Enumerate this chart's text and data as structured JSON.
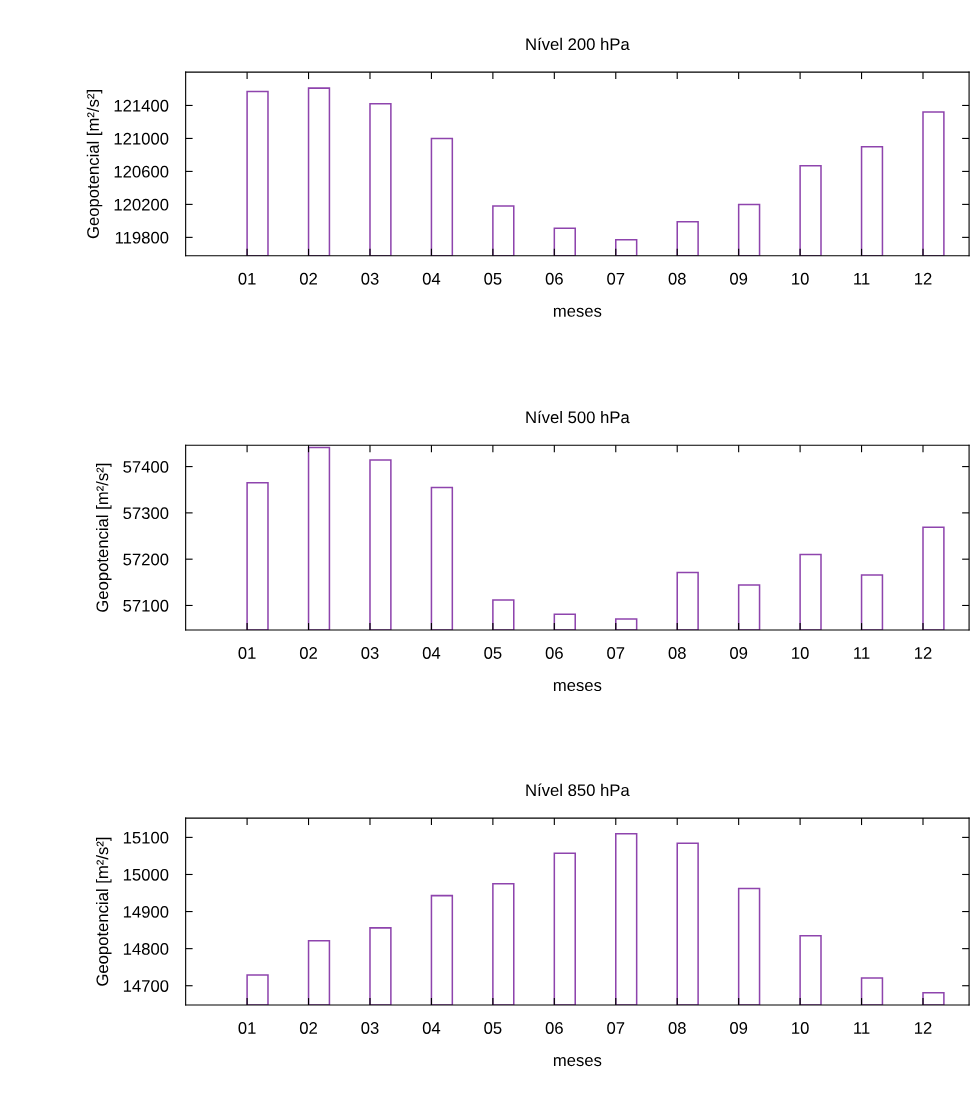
{
  "chart_data": [
    {
      "type": "bar",
      "title": "Nível 200 hPa",
      "xlabel": "meses",
      "ylabel": "Geopotencial [m²/s²]",
      "categories": [
        "01",
        "02",
        "03",
        "04",
        "05",
        "06",
        "07",
        "08",
        "09",
        "10",
        "11",
        "12"
      ],
      "series": [
        {
          "color": "#8e44ad",
          "values": [
            121570,
            121610,
            121420,
            121000,
            120180,
            119910,
            119770,
            119990,
            120200,
            120670,
            120900,
            121320
          ]
        }
      ],
      "ylim": [
        119577,
        121804
      ],
      "yticks": [
        119800,
        120200,
        120600,
        121000,
        121400
      ],
      "grid": false,
      "legend": false
    },
    {
      "type": "bar",
      "title": "Nível 500 hPa",
      "xlabel": "meses",
      "ylabel": "Geopotencial [m²/s²]",
      "categories": [
        "01",
        "02",
        "03",
        "04",
        "05",
        "06",
        "07",
        "08",
        "09",
        "10",
        "11",
        "12"
      ],
      "series": [
        {
          "color": "#8e44ad",
          "values": [
            57365,
            57441,
            57414,
            57355,
            57112,
            57081,
            57071,
            57171,
            57144,
            57210,
            57166,
            57269
          ]
        }
      ],
      "ylim": [
        57047,
        57446
      ],
      "yticks": [
        57100,
        57200,
        57300,
        57400
      ],
      "grid": false,
      "legend": false
    },
    {
      "type": "bar",
      "title": "Nível 850 hPa",
      "xlabel": "meses",
      "ylabel": "Geopotencial [m²/s²]",
      "categories": [
        "01",
        "02",
        "03",
        "04",
        "05",
        "06",
        "07",
        "08",
        "09",
        "10",
        "11",
        "12"
      ],
      "series": [
        {
          "color": "#8e44ad",
          "values": [
            14729,
            14821,
            14856,
            14943,
            14975,
            15057,
            15110,
            15084,
            14962,
            14835,
            14721,
            14681
          ]
        }
      ],
      "ylim": [
        14648,
        15152
      ],
      "yticks": [
        14700,
        14800,
        14900,
        15000,
        15100
      ],
      "grid": false,
      "legend": false
    }
  ]
}
